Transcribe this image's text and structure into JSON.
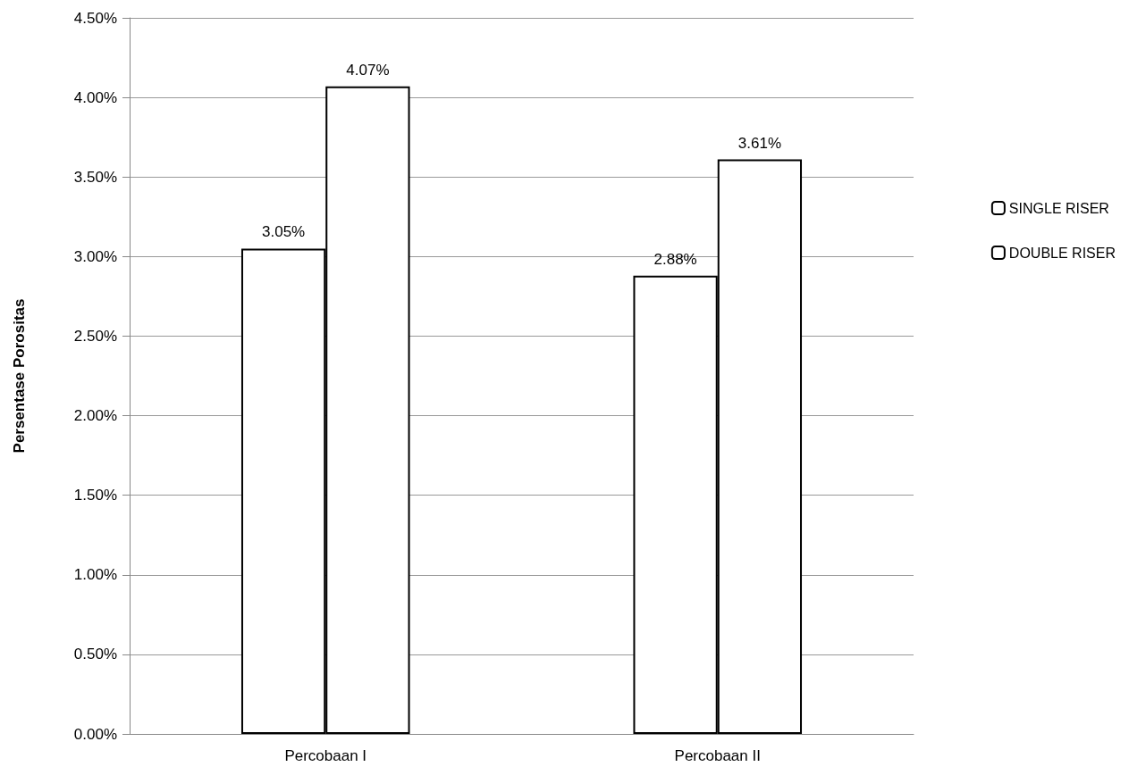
{
  "chart_data": {
    "type": "bar",
    "ylabel": "Persentase Porositas",
    "categories": [
      "Percobaan I",
      "Percobaan II"
    ],
    "series": [
      {
        "name": "SINGLE RISER",
        "color": "#ffffff",
        "values": [
          3.05,
          2.88
        ],
        "value_labels": [
          "3.05%",
          "2.88%"
        ]
      },
      {
        "name": "DOUBLE RISER",
        "color": "#ffffff",
        "values": [
          4.07,
          3.61
        ],
        "value_labels": [
          "4.07%",
          "3.61%"
        ]
      }
    ],
    "ylim": [
      0,
      4.5
    ],
    "yticks": [
      {
        "value": 0,
        "label": "0.00%"
      },
      {
        "value": 0.5,
        "label": "0.50%"
      },
      {
        "value": 1,
        "label": "1.00%"
      },
      {
        "value": 1.5,
        "label": "1.50%"
      },
      {
        "value": 2,
        "label": "2.00%"
      },
      {
        "value": 2.5,
        "label": "2.50%"
      },
      {
        "value": 3,
        "label": "3.00%"
      },
      {
        "value": 3.5,
        "label": "3.50%"
      },
      {
        "value": 4,
        "label": "4.00%"
      },
      {
        "value": 4.5,
        "label": "4.50%"
      }
    ],
    "grid": "y",
    "legend": "right"
  }
}
